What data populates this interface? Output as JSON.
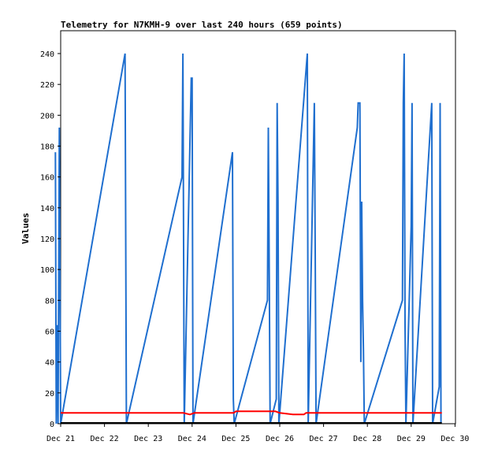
{
  "chart_data": {
    "type": "line",
    "title": "Telemetry for N7KMH-9 over last 240 hours (659 points)",
    "ylabel": "Values",
    "xlabel": "",
    "ylim": [
      0,
      254
    ],
    "xlim": [
      0,
      9
    ],
    "y_ticks": [
      0,
      20,
      40,
      60,
      80,
      100,
      120,
      140,
      160,
      180,
      200,
      220,
      240
    ],
    "x_ticks": [
      {
        "x": 0,
        "label": "Dec 21"
      },
      {
        "x": 1,
        "label": "Dec 22"
      },
      {
        "x": 2,
        "label": "Dec 23"
      },
      {
        "x": 3,
        "label": "Dec 24"
      },
      {
        "x": 4,
        "label": "Dec 25"
      },
      {
        "x": 5,
        "label": "Dec 26"
      },
      {
        "x": 6,
        "label": "Dec 27"
      },
      {
        "x": 7,
        "label": "Dec 28"
      },
      {
        "x": 8,
        "label": "Dec 29"
      },
      {
        "x": 9,
        "label": "Dec 30"
      }
    ],
    "grid": false,
    "series": [
      {
        "color": "#1f6fcf",
        "points": [
          [
            -0.12,
            176
          ],
          [
            -0.1,
            0
          ],
          [
            -0.08,
            64
          ],
          [
            -0.06,
            0
          ],
          [
            -0.03,
            192
          ],
          [
            0.0,
            0
          ],
          [
            1.47,
            240
          ],
          [
            1.5,
            0
          ],
          [
            2.77,
            160
          ],
          [
            2.79,
            240
          ],
          [
            2.82,
            0
          ],
          [
            2.98,
            224
          ],
          [
            3.0,
            224
          ],
          [
            3.02,
            0
          ],
          [
            3.92,
            176
          ],
          [
            3.94,
            16
          ],
          [
            3.96,
            0
          ],
          [
            4.72,
            80
          ],
          [
            4.74,
            192
          ],
          [
            4.76,
            96
          ],
          [
            4.78,
            0
          ],
          [
            4.92,
            16
          ],
          [
            4.94,
            208
          ],
          [
            4.96,
            144
          ],
          [
            4.98,
            0
          ],
          [
            5.63,
            240
          ],
          [
            5.65,
            0
          ],
          [
            5.79,
            208
          ],
          [
            5.81,
            112
          ],
          [
            5.83,
            0
          ],
          [
            6.77,
            192
          ],
          [
            6.79,
            208
          ],
          [
            6.81,
            208
          ],
          [
            6.83,
            208
          ],
          [
            6.85,
            40
          ],
          [
            6.87,
            144
          ],
          [
            6.89,
            80
          ],
          [
            6.91,
            48
          ],
          [
            6.93,
            0
          ],
          [
            7.8,
            80
          ],
          [
            7.82,
            208
          ],
          [
            7.84,
            240
          ],
          [
            7.86,
            64
          ],
          [
            7.88,
            0
          ],
          [
            8.0,
            128
          ],
          [
            8.02,
            208
          ],
          [
            8.04,
            0
          ],
          [
            8.47,
            208
          ],
          [
            8.49,
            0
          ],
          [
            8.64,
            24
          ],
          [
            8.66,
            208
          ],
          [
            8.68,
            0
          ]
        ]
      },
      {
        "color": "#ff0000",
        "points": [
          [
            0.0,
            7
          ],
          [
            2.8,
            7
          ],
          [
            2.95,
            6
          ],
          [
            3.05,
            7
          ],
          [
            3.95,
            7
          ],
          [
            4.0,
            8
          ],
          [
            4.9,
            8
          ],
          [
            5.0,
            7
          ],
          [
            5.3,
            6
          ],
          [
            5.55,
            6
          ],
          [
            5.6,
            7
          ],
          [
            6.9,
            7
          ],
          [
            8.7,
            7
          ]
        ]
      },
      {
        "color": "#000000",
        "points": [
          [
            0.0,
            0.5
          ],
          [
            8.7,
            0.5
          ]
        ]
      }
    ]
  }
}
